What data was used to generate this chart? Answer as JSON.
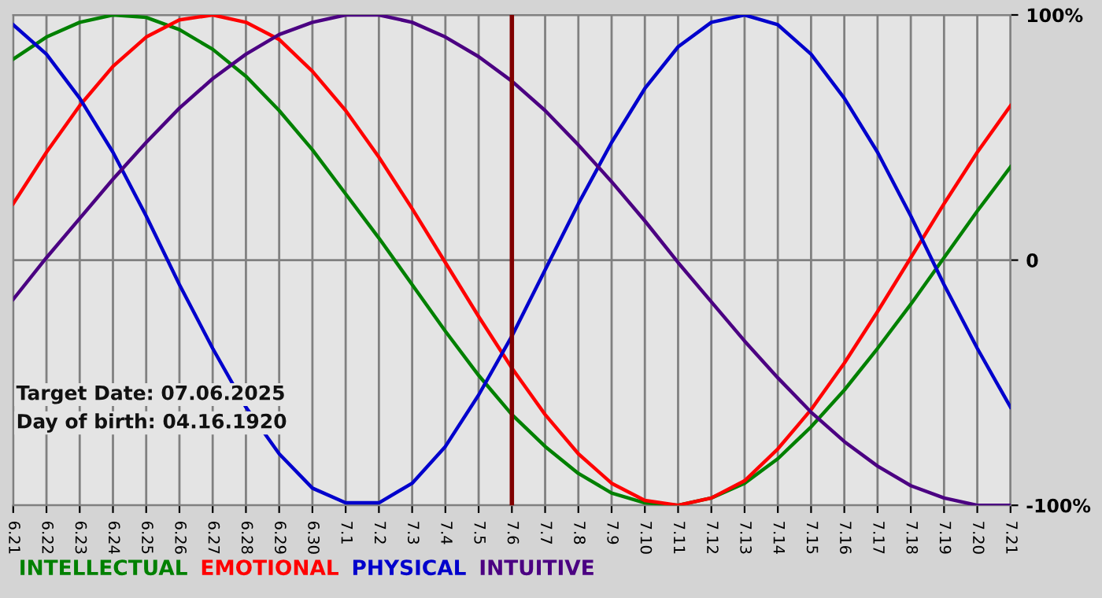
{
  "chart_data": {
    "type": "line",
    "categories": [
      "6.21",
      "6.22",
      "6.23",
      "6.24",
      "6.25",
      "6.26",
      "6.27",
      "6.28",
      "6.29",
      "6.30",
      "7.1",
      "7.2",
      "7.3",
      "7.4",
      "7.5",
      "7.6",
      "7.7",
      "7.8",
      "7.9",
      "7.10",
      "7.11",
      "7.12",
      "7.13",
      "7.14",
      "7.15",
      "7.16",
      "7.17",
      "7.18",
      "7.19",
      "7.20",
      "7.21"
    ],
    "series": [
      {
        "name": "INTELLECTUAL",
        "color": "#008000",
        "values": [
          82,
          91,
          97,
          100,
          99,
          94,
          86,
          75,
          61,
          45,
          27,
          9,
          -10,
          -29,
          -47,
          -63,
          -76,
          -87,
          -95,
          -99,
          -100,
          -97,
          -91,
          -81,
          -68,
          -53,
          -36,
          -18,
          1,
          20,
          38
        ]
      },
      {
        "name": "EMOTIONAL",
        "color": "#ff0000",
        "values": [
          23,
          44,
          63,
          79,
          91,
          98,
          100,
          97,
          90,
          77,
          61,
          42,
          21,
          -1,
          -23,
          -44,
          -63,
          -79,
          -91,
          -98,
          -100,
          -97,
          -90,
          -77,
          -61,
          -42,
          -21,
          1,
          23,
          44,
          63
        ]
      },
      {
        "name": "PHYSICAL",
        "color": "#0000cc",
        "values": [
          96,
          84,
          66,
          44,
          18,
          -10,
          -36,
          -60,
          -79,
          -93,
          -99,
          -99,
          -91,
          -76,
          -55,
          -31,
          -4,
          23,
          48,
          70,
          87,
          97,
          100,
          96,
          84,
          66,
          44,
          18,
          -10,
          -36,
          -60
        ]
      },
      {
        "name": "INTUITIVE",
        "color": "#4b0082",
        "values": [
          -16,
          1,
          17,
          33,
          48,
          62,
          74,
          84,
          92,
          97,
          100,
          100,
          97,
          91,
          83,
          73,
          61,
          47,
          32,
          16,
          -1,
          -17,
          -33,
          -48,
          -62,
          -74,
          -84,
          -92,
          -97,
          -100,
          -100
        ]
      }
    ],
    "ylim": [
      -100,
      100
    ],
    "yticks": [
      {
        "value": 100,
        "label": "100%"
      },
      0,
      {
        "value": -100,
        "label": "-100%"
      }
    ],
    "grid": true,
    "legend": "bottom",
    "ref_lines": [
      {
        "axis": "x",
        "value": "7.6",
        "color": "#800000"
      }
    ],
    "annotations": [
      "Target Date: 07.06.2025",
      "Day of birth: 04.16.1920"
    ]
  }
}
